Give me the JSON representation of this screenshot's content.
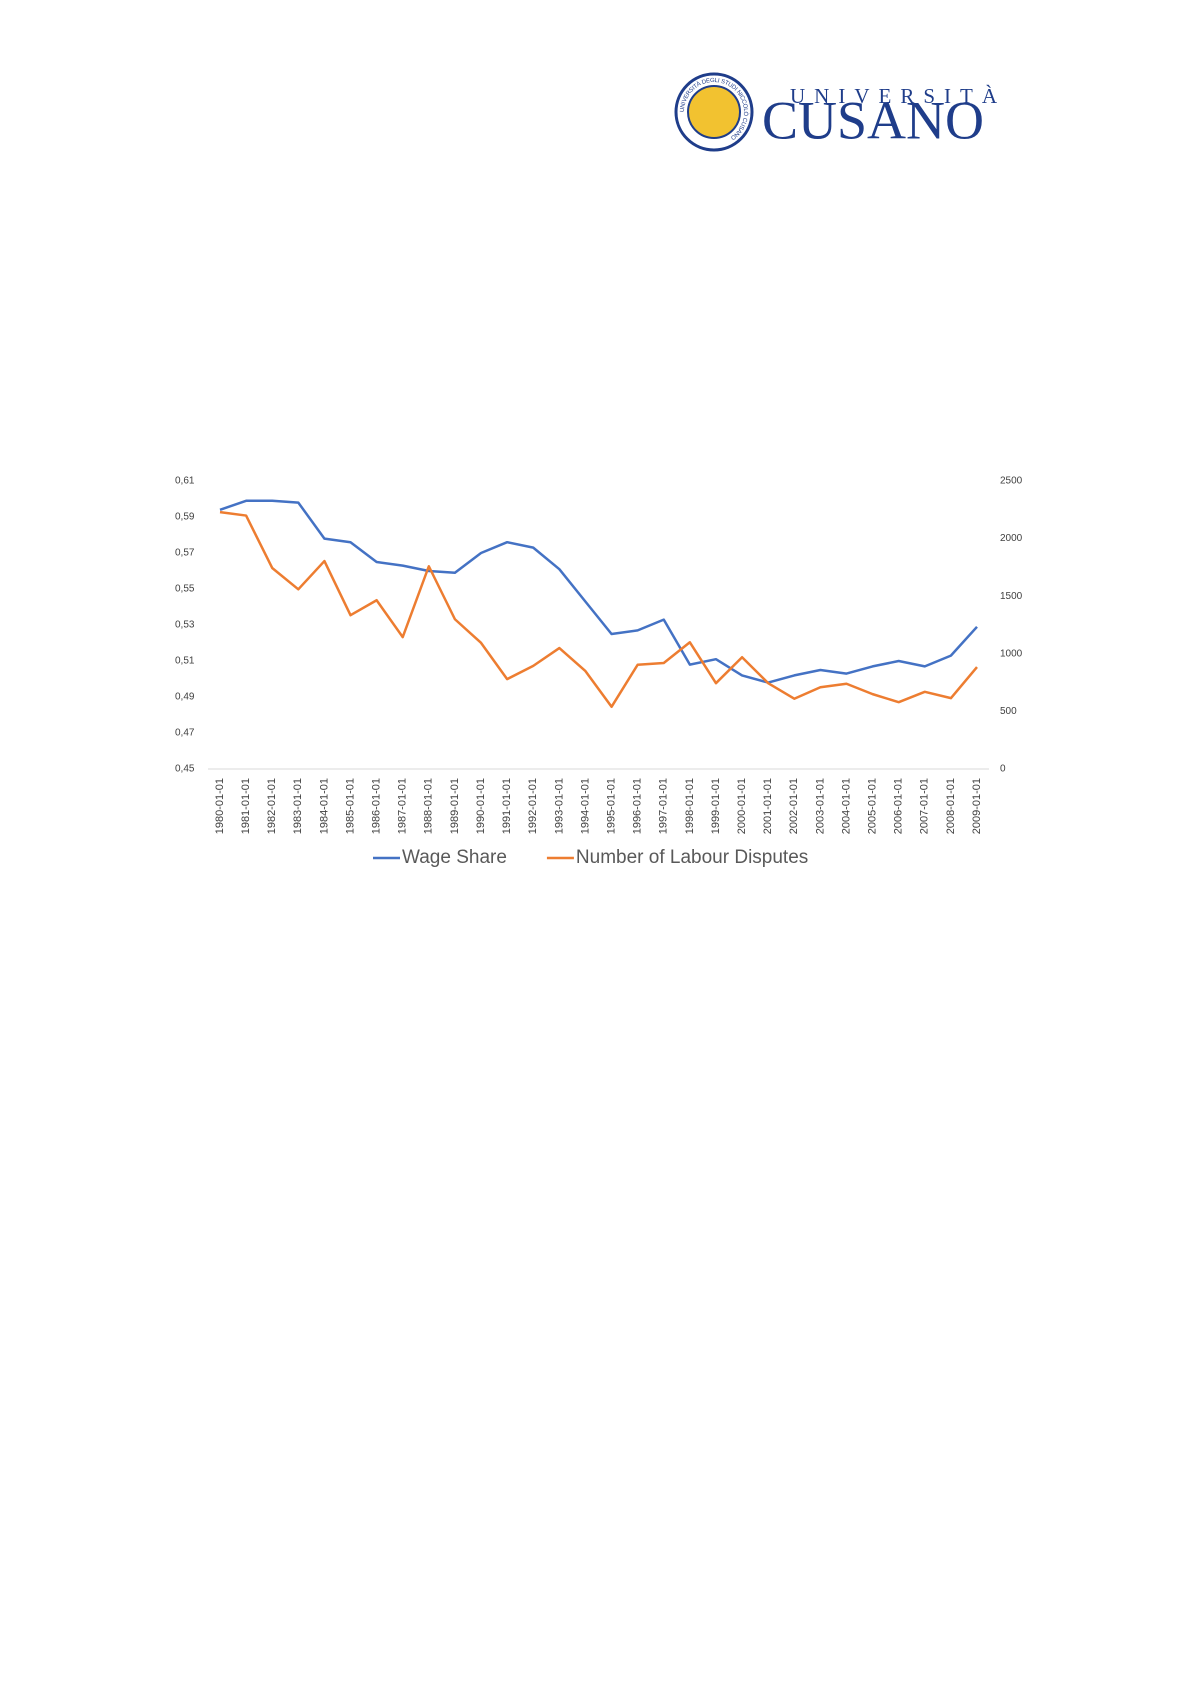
{
  "logo": {
    "seal_text": "UNIVERSITÀ DEGLI STUDI NICCOLÒ CUSANO",
    "top": "UNIVERSITÀ",
    "name": "CUSANO"
  },
  "chart_data": {
    "type": "line",
    "x": [
      "1980-01-01",
      "1981-01-01",
      "1982-01-01",
      "1983-01-01",
      "1984-01-01",
      "1985-01-01",
      "1986-01-01",
      "1987-01-01",
      "1988-01-01",
      "1989-01-01",
      "1990-01-01",
      "1991-01-01",
      "1992-01-01",
      "1993-01-01",
      "1994-01-01",
      "1995-01-01",
      "1996-01-01",
      "1997-01-01",
      "1998-01-01",
      "1999-01-01",
      "2000-01-01",
      "2001-01-01",
      "2002-01-01",
      "2003-01-01",
      "2004-01-01",
      "2005-01-01",
      "2006-01-01",
      "2007-01-01",
      "2008-01-01",
      "2009-01-01"
    ],
    "series": [
      {
        "name": "Wage Share",
        "color": "#4472c4",
        "values": [
          0.594,
          0.599,
          0.599,
          0.598,
          0.578,
          0.576,
          0.565,
          0.563,
          0.56,
          0.559,
          0.57,
          0.576,
          0.573,
          0.561,
          0.543,
          0.525,
          0.527,
          0.533,
          0.508,
          0.511,
          0.502,
          0.498,
          0.502,
          0.505,
          0.503,
          0.507,
          0.51,
          0.507,
          0.513,
          0.529
        ]
      },
      {
        "name": "Number of Labour Disputes",
        "color": "#ed7d31",
        "axis": "y2",
        "values": [
          2230,
          2200,
          1745,
          1560,
          1805,
          1335,
          1465,
          1145,
          1760,
          1300,
          1095,
          780,
          895,
          1050,
          850,
          540,
          905,
          920,
          1100,
          745,
          970,
          745,
          610,
          710,
          740,
          650,
          580,
          670,
          615,
          885
        ]
      }
    ],
    "ylim": [
      0.45,
      0.61
    ],
    "yticks": [
      {
        "value": 0.45,
        "label": "0,45"
      },
      {
        "value": 0.47,
        "label": "0,47"
      },
      {
        "value": 0.49,
        "label": "0,49"
      },
      {
        "value": 0.51,
        "label": "0,51"
      },
      {
        "value": 0.53,
        "label": "0,53"
      },
      {
        "value": 0.55,
        "label": "0,55"
      },
      {
        "value": 0.57,
        "label": "0,57"
      },
      {
        "value": 0.59,
        "label": "0,59"
      },
      {
        "value": 0.61,
        "label": "0,61"
      }
    ],
    "y2lim": [
      0,
      2500
    ],
    "y2ticks": [
      0,
      500,
      1000,
      1500,
      2000,
      2500
    ],
    "legend": "bottom"
  }
}
